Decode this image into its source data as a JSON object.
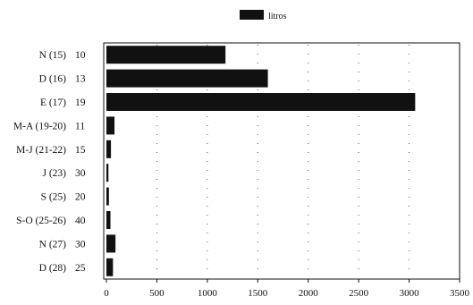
{
  "chart_data": {
    "type": "bar",
    "orientation": "horizontal",
    "categories": [
      "N (15)",
      "D (16)",
      "E (17)",
      "M-A (19-20)",
      "M-J (21-22)",
      "J (23)",
      "S (25)",
      "S-O (25-26)",
      "N (27)",
      "D (28)"
    ],
    "category_counts": [
      "10",
      "13",
      "19",
      "11",
      "15",
      "30",
      "20",
      "40",
      "30",
      "25"
    ],
    "series": [
      {
        "name": "litros",
        "values": [
          1180,
          1600,
          3060,
          80,
          45,
          20,
          25,
          40,
          90,
          65
        ]
      }
    ],
    "xlim": [
      0,
      3500
    ],
    "xticks": [
      "0",
      "500",
      "1000",
      "1500",
      "2000",
      "2500",
      "3000",
      "3500"
    ],
    "legend": "top-center",
    "grid": "vertical dotted",
    "bar_color": "#111111"
  }
}
